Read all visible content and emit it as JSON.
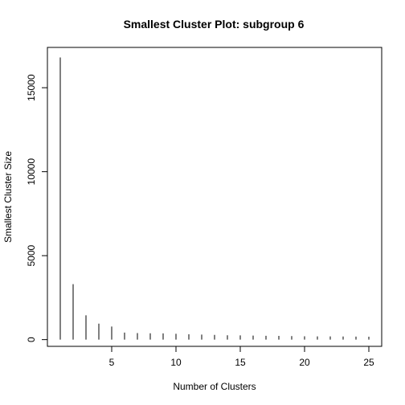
{
  "chart_data": {
    "type": "bar",
    "title": "Smallest Cluster Plot: subgroup  6",
    "xlabel": "Number of Clusters",
    "ylabel": "Smallest Cluster Size",
    "x": [
      1,
      2,
      3,
      4,
      5,
      6,
      7,
      8,
      9,
      10,
      11,
      12,
      13,
      14,
      15,
      16,
      17,
      18,
      19,
      20,
      21,
      22,
      23,
      24,
      25
    ],
    "values": [
      16800,
      3300,
      1450,
      950,
      780,
      420,
      390,
      380,
      370,
      350,
      320,
      300,
      280,
      260,
      250,
      240,
      230,
      220,
      210,
      200,
      195,
      190,
      185,
      180,
      175
    ],
    "xlim": [
      0,
      26
    ],
    "ylim": [
      -400,
      17400
    ],
    "x_ticks": [
      "5",
      "10",
      "15",
      "20",
      "25"
    ],
    "y_ticks": [
      "0",
      "5000",
      "10000",
      "15000"
    ],
    "grid": false
  }
}
